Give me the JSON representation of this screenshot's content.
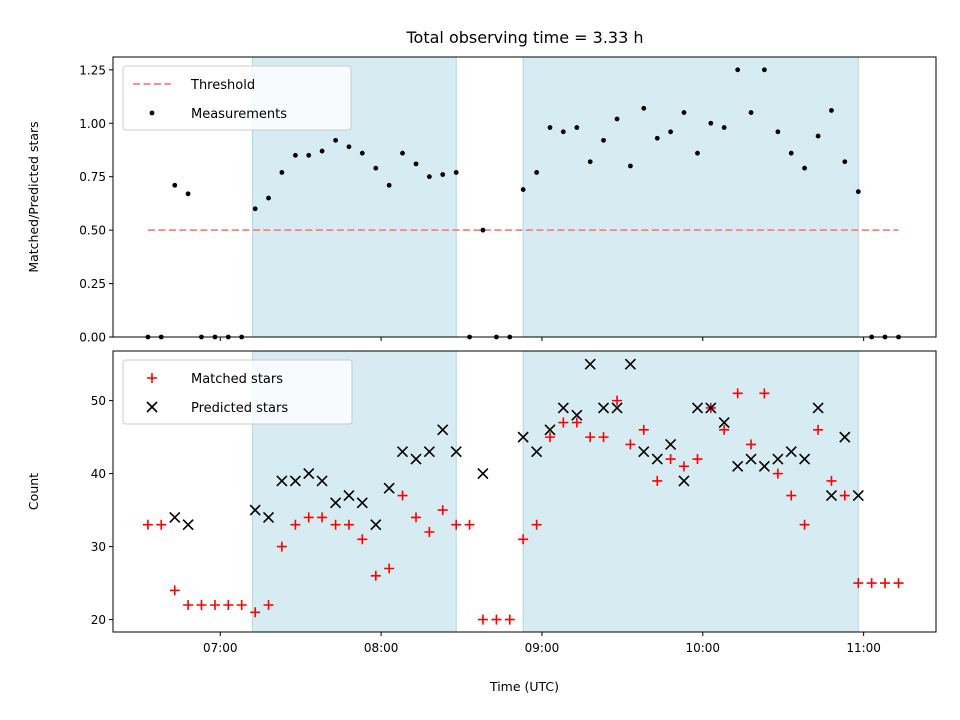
{
  "figure_title": "Total observing time = 3.33 h",
  "chart_data": [
    {
      "type": "scatter",
      "ylabel": "Matched/Predicted stars",
      "xlabel": "",
      "xlim": [
        6.333,
        11.45
      ],
      "ylim": [
        0.0,
        1.31
      ],
      "yticks": [
        0.0,
        0.25,
        0.5,
        0.75,
        1.0,
        1.25
      ],
      "ytick_labels": [
        "0.00",
        "0.25",
        "0.50",
        "0.75",
        "1.00",
        "1.25"
      ],
      "grid": false,
      "legend": "top-left",
      "shaded_intervals": [
        [
          7.2,
          8.467
        ],
        [
          8.883,
          10.967
        ]
      ],
      "threshold": {
        "name": "Threshold",
        "value": 0.5,
        "x_range": [
          6.55,
          11.217
        ],
        "color": "#ff7f7f"
      },
      "series": [
        {
          "name": "Measurements",
          "color": "#000000",
          "marker": "dot",
          "x": [
            6.55,
            6.633,
            6.717,
            6.8,
            6.883,
            6.967,
            7.05,
            7.133,
            7.217,
            7.3,
            7.383,
            7.467,
            7.55,
            7.633,
            7.717,
            7.8,
            7.883,
            7.967,
            8.05,
            8.133,
            8.217,
            8.3,
            8.383,
            8.467,
            8.55,
            8.633,
            8.717,
            8.8,
            8.883,
            8.967,
            9.05,
            9.133,
            9.217,
            9.3,
            9.383,
            9.467,
            9.55,
            9.633,
            9.717,
            9.8,
            9.883,
            9.967,
            10.05,
            10.133,
            10.217,
            10.3,
            10.383,
            10.467,
            10.55,
            10.633,
            10.717,
            10.8,
            10.883,
            10.967,
            11.05,
            11.133,
            11.217
          ],
          "y": [
            0.0,
            0.0,
            0.71,
            0.67,
            0.0,
            0.0,
            0.0,
            0.0,
            0.6,
            0.65,
            0.77,
            0.85,
            0.85,
            0.87,
            0.92,
            0.89,
            0.86,
            0.79,
            0.71,
            0.86,
            0.81,
            0.75,
            0.76,
            0.77,
            0.0,
            0.5,
            0.0,
            0.0,
            0.69,
            0.77,
            0.98,
            0.96,
            0.98,
            0.82,
            0.92,
            1.02,
            0.8,
            1.07,
            0.93,
            0.96,
            1.05,
            0.86,
            1.0,
            0.98,
            1.25,
            1.05,
            1.25,
            0.96,
            0.86,
            0.79,
            0.94,
            1.06,
            0.82,
            0.68,
            0.0,
            0.0,
            0.0
          ]
        }
      ]
    },
    {
      "type": "scatter",
      "ylabel": "Count",
      "xlabel": "Time (UTC)",
      "xlim": [
        6.333,
        11.45
      ],
      "ylim": [
        18.3,
        56.8
      ],
      "yticks": [
        20,
        30,
        40,
        50
      ],
      "ytick_labels": [
        "20",
        "30",
        "40",
        "50"
      ],
      "xticks": [
        7,
        8,
        9,
        10,
        11
      ],
      "xtick_labels": [
        "07:00",
        "08:00",
        "09:00",
        "10:00",
        "11:00"
      ],
      "grid": false,
      "legend": "top-left",
      "shaded_intervals": [
        [
          7.2,
          8.467
        ],
        [
          8.883,
          10.967
        ]
      ],
      "series": [
        {
          "name": "Matched stars",
          "color": "#ff0000",
          "marker": "plus",
          "x": [
            6.55,
            6.633,
            6.717,
            6.8,
            6.883,
            6.967,
            7.05,
            7.133,
            7.217,
            7.3,
            7.383,
            7.467,
            7.55,
            7.633,
            7.717,
            7.8,
            7.883,
            7.967,
            8.05,
            8.133,
            8.217,
            8.3,
            8.383,
            8.467,
            8.55,
            8.633,
            8.717,
            8.8,
            8.883,
            8.967,
            9.05,
            9.133,
            9.217,
            9.3,
            9.383,
            9.467,
            9.55,
            9.633,
            9.717,
            9.8,
            9.883,
            9.967,
            10.05,
            10.133,
            10.217,
            10.3,
            10.383,
            10.467,
            10.55,
            10.633,
            10.717,
            10.8,
            10.883,
            10.967,
            11.05,
            11.133,
            11.217
          ],
          "y": [
            33,
            33,
            24,
            22,
            22,
            22,
            22,
            22,
            21,
            22,
            30,
            33,
            34,
            34,
            33,
            33,
            31,
            26,
            27,
            37,
            34,
            32,
            35,
            33,
            33,
            20,
            20,
            20,
            31,
            33,
            45,
            47,
            47,
            45,
            45,
            50,
            44,
            46,
            39,
            42,
            41,
            42,
            49,
            46,
            51,
            44,
            51,
            40,
            37,
            33,
            46,
            39,
            37,
            25,
            25,
            25,
            25
          ]
        },
        {
          "name": "Predicted stars",
          "color": "#000000",
          "marker": "x",
          "x": [
            6.717,
            6.8,
            7.217,
            7.3,
            7.383,
            7.467,
            7.55,
            7.633,
            7.717,
            7.8,
            7.883,
            7.967,
            8.05,
            8.133,
            8.217,
            8.3,
            8.383,
            8.467,
            8.633,
            8.883,
            8.967,
            9.05,
            9.133,
            9.217,
            9.3,
            9.383,
            9.467,
            9.55,
            9.633,
            9.717,
            9.8,
            9.883,
            9.967,
            10.05,
            10.133,
            10.217,
            10.3,
            10.383,
            10.467,
            10.55,
            10.633,
            10.717,
            10.8,
            10.883,
            10.967
          ],
          "y": [
            34,
            33,
            35,
            34,
            39,
            39,
            40,
            39,
            36,
            37,
            36,
            33,
            38,
            43,
            42,
            43,
            46,
            43,
            40,
            45,
            43,
            46,
            49,
            48,
            55,
            49,
            49,
            55,
            43,
            42,
            44,
            39,
            49,
            49,
            47,
            41,
            42,
            41,
            42,
            43,
            42,
            49,
            37,
            45,
            37
          ]
        }
      ]
    }
  ]
}
